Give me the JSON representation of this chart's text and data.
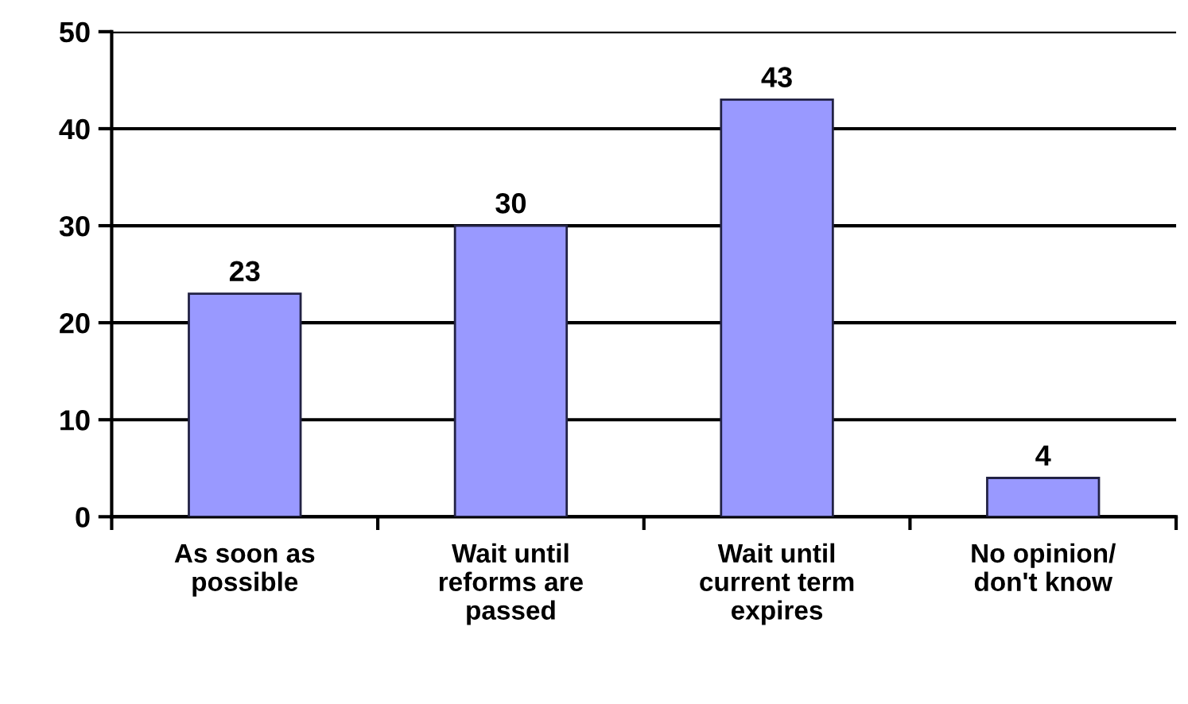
{
  "chart_data": {
    "type": "bar",
    "categories": [
      "As soon as\npossible",
      "Wait until\nreforms are\npassed",
      "Wait until\ncurrent term\nexpires",
      "No opinion/\ndon't know"
    ],
    "values": [
      23,
      30,
      43,
      4
    ],
    "color": "#9999ff",
    "ylim": [
      0,
      50
    ],
    "yticks": [
      0,
      10,
      20,
      30,
      40,
      50
    ],
    "grid": "y",
    "data_labels": true
  }
}
